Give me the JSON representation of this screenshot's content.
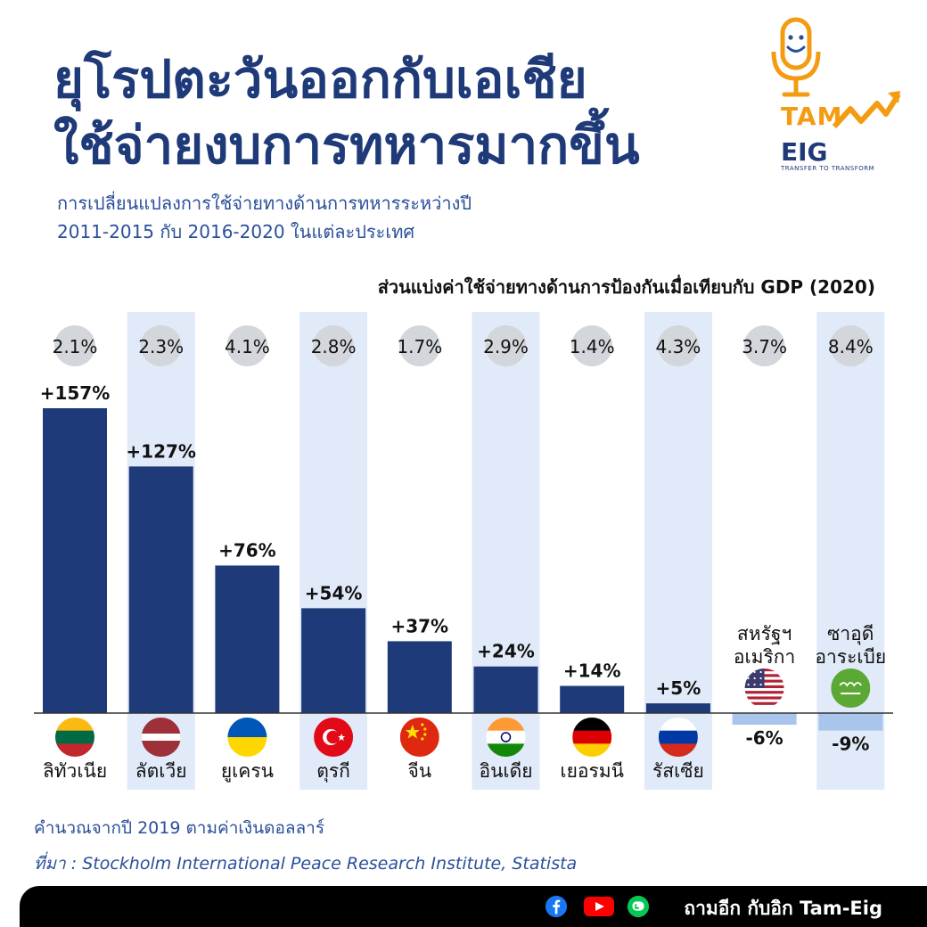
{
  "title_line1": "ยุโรปตะวันออกกับเอเชีย",
  "title_line2": "ใช้จ่ายงบการทหารมากขึ้น",
  "subtitle_line1": "การเปลี่ยนแปลงการใช้จ่ายทางด้านการทหารระหว่างปี",
  "subtitle_line2": "2011-2015 กับ 2016-2020 ในแต่ละประเทศ",
  "gdp_heading": "ส่วนแบ่งค่าใช้จ่ายทางด้านการป้องกันเมื่อเทียบกับ GDP (2020)",
  "logo": {
    "word1": "TAM",
    "word2": "EIG",
    "tagline": "TRANSFER TO TRANSFORM",
    "icon": "microphone-icon"
  },
  "note": "คำนวณจากปี 2019 ตามค่าเงินดอลลาร์",
  "source": "ที่มา : Stockholm International Peace Research Institute, Statista",
  "footer": {
    "brand": "ถามอีก กับอิก Tam-Eig",
    "icons": [
      "facebook-icon",
      "youtube-icon",
      "line-icon"
    ]
  },
  "colors": {
    "bar": "#1f3a78",
    "bar_negative": "#a9c5ec",
    "column_highlight": "#e1eaf9",
    "gdp_circle": "#d3d6da",
    "title": "#1f3a78"
  },
  "chart_data": {
    "type": "bar",
    "categories": [
      "ลิทัวเนีย",
      "ลัตเวีย",
      "ยูเครน",
      "ตุรกี",
      "จีน",
      "อินเดีย",
      "เยอรมนี",
      "รัสเซีย",
      "สหรัฐฯ อเมริกา",
      "ซาอุดี อาระเบีย"
    ],
    "values": [
      157,
      127,
      76,
      54,
      37,
      24,
      14,
      5,
      -6,
      -9
    ],
    "value_labels": [
      "+157%",
      "+127%",
      "+76%",
      "+54%",
      "+37%",
      "+24%",
      "+14%",
      "+5%",
      "-6%",
      "-9%"
    ],
    "gdp_share": [
      "2.1%",
      "2.3%",
      "4.1%",
      "2.8%",
      "1.7%",
      "2.9%",
      "1.4%",
      "4.3%",
      "3.7%",
      "8.4%"
    ],
    "highlighted_columns": [
      1,
      3,
      5,
      7,
      9
    ],
    "flags": [
      "lithuania-flag",
      "latvia-flag",
      "ukraine-flag",
      "turkey-flag",
      "china-flag",
      "india-flag",
      "germany-flag",
      "russia-flag",
      "usa-flag",
      "saudi-arabia-flag"
    ],
    "ylim": [
      -9,
      157
    ],
    "grid": false,
    "legend": "none"
  }
}
